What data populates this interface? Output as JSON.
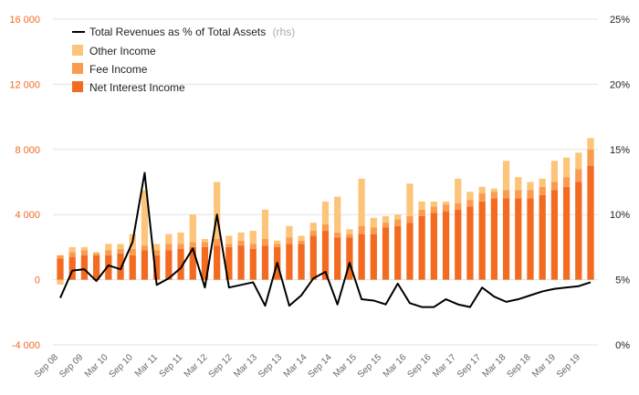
{
  "colors": {
    "net_interest_income": "#f26b21",
    "fee_income": "#f99b50",
    "other_income": "#fdc57a",
    "revenue_line": "#000000",
    "left_axis_text": "#f26b21",
    "grid": "#e3e3e3"
  },
  "legend": {
    "line_label": "Total Revenues as % of Total Assets",
    "line_suffix": "(rhs)",
    "other_label": "Other Income",
    "fee_label": "Fee Income",
    "nii_label": "Net Interest Income"
  },
  "chart_data": {
    "type": "bar",
    "stacked": true,
    "title": "",
    "xlabel": "",
    "ylabel": "",
    "y_left": {
      "ylim": [
        -4000,
        16000
      ],
      "ticks": [
        -4000,
        0,
        4000,
        8000,
        12000,
        16000
      ],
      "tick_labels": [
        "-4 000",
        "0",
        "4 000",
        "8 000",
        "12 000",
        "16 000"
      ]
    },
    "y_right": {
      "ylim": [
        0,
        25
      ],
      "ticks": [
        0,
        5,
        10,
        15,
        20,
        25
      ],
      "tick_labels": [
        "0%",
        "5%",
        "10%",
        "15%",
        "20%",
        "25%"
      ]
    },
    "grid": true,
    "legend_position": "top-left",
    "x_tick_labels": [
      "Sep 08",
      "Sep 09",
      "Mar 10",
      "Sep 10",
      "Mar 11",
      "Sep 11",
      "Mar 12",
      "Sep 12",
      "Mar 13",
      "Sep 13",
      "Mar 14",
      "Sep 14",
      "Mar 15",
      "Sep 15",
      "Mar 16",
      "Sep 16",
      "Mar 17",
      "Sep 17",
      "Mar 18",
      "Sep 18",
      "Mar 19",
      "Sep 19"
    ],
    "series": [
      {
        "name": "Net Interest Income",
        "axis": "left",
        "kind": "bar",
        "values": [
          1300,
          1400,
          1500,
          1500,
          1500,
          1600,
          1500,
          1800,
          1500,
          1800,
          1900,
          2000,
          2000,
          2100,
          2000,
          2100,
          1900,
          2100,
          2000,
          2200,
          2200,
          2700,
          3000,
          2600,
          2600,
          2800,
          2800,
          3200,
          3300,
          3500,
          3900,
          4100,
          4200,
          4300,
          4500,
          4800,
          5000,
          5000,
          5000,
          5000,
          5200,
          5500,
          5700,
          6000,
          7000
        ]
      },
      {
        "name": "Fee Income",
        "axis": "left",
        "kind": "bar",
        "values": [
          200,
          300,
          300,
          100,
          300,
          300,
          400,
          300,
          300,
          400,
          300,
          300,
          300,
          400,
          200,
          300,
          300,
          400,
          200,
          400,
          200,
          300,
          400,
          300,
          200,
          500,
          400,
          300,
          400,
          400,
          400,
          400,
          400,
          400,
          400,
          500,
          400,
          500,
          500,
          500,
          500,
          500,
          600,
          800,
          1000
        ]
      },
      {
        "name": "Other Income",
        "axis": "left",
        "kind": "bar",
        "values": [
          -300,
          300,
          200,
          100,
          400,
          300,
          900,
          3400,
          400,
          600,
          700,
          1700,
          200,
          3500,
          500,
          500,
          800,
          1800,
          200,
          700,
          300,
          500,
          1400,
          2200,
          300,
          2900,
          600,
          400,
          300,
          2000,
          500,
          300,
          200,
          1500,
          500,
          400,
          200,
          1800,
          800,
          500,
          500,
          1300,
          1200,
          1000,
          700
        ]
      },
      {
        "name": "Total Revenues as % of Total Assets",
        "axis": "right",
        "kind": "line",
        "values": [
          3.6,
          5.7,
          5.8,
          4.9,
          6.1,
          5.8,
          7.9,
          13.2,
          4.6,
          5.1,
          5.9,
          7.4,
          4.4,
          10.0,
          4.4,
          4.6,
          4.8,
          3.0,
          6.3,
          3.0,
          3.8,
          5.1,
          5.6,
          3.1,
          6.3,
          3.5,
          3.4,
          3.1,
          4.7,
          3.2,
          2.9,
          2.9,
          3.5,
          3.1,
          2.9,
          4.4,
          3.7,
          3.3,
          3.5,
          3.8,
          4.1,
          4.3,
          4.4,
          4.5,
          4.8
        ]
      }
    ]
  }
}
